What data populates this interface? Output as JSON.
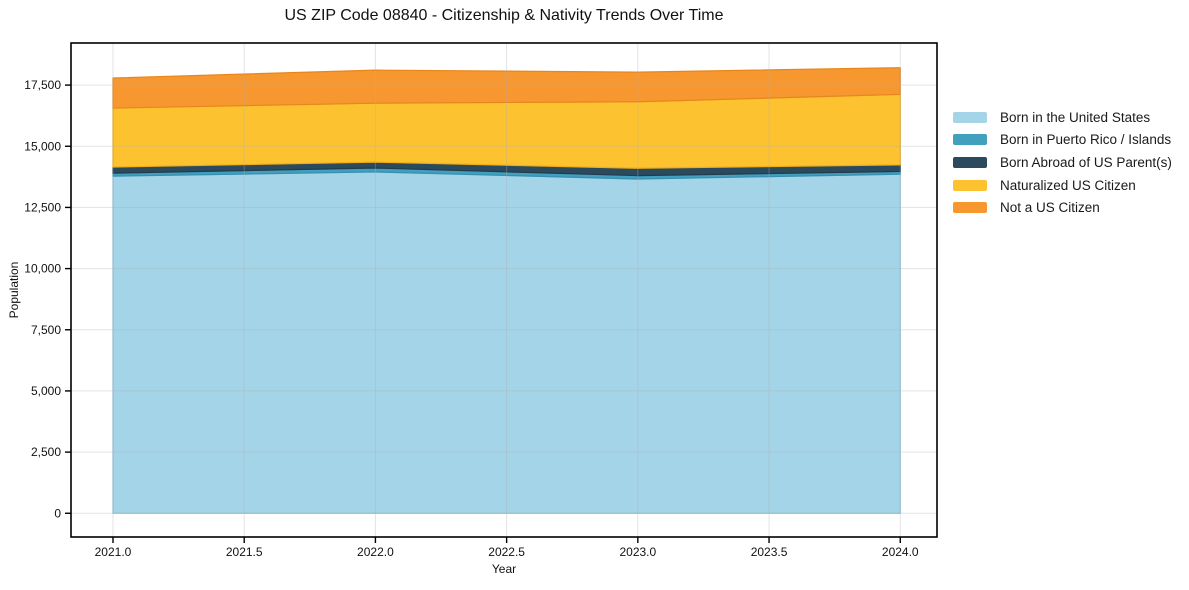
{
  "chart_data": {
    "type": "area",
    "stacked": true,
    "title": "US ZIP Code 08840 - Citizenship & Nativity Trends Over Time",
    "xlabel": "Year",
    "ylabel": "Population",
    "x": [
      2021,
      2022,
      2023,
      2024
    ],
    "series": [
      {
        "name": "Born in the United States",
        "color": "#A4D4E8",
        "edge": "#8CC3DC",
        "values": [
          13780,
          13950,
          13660,
          13860
        ]
      },
      {
        "name": "Born in Puerto Rico / Islands",
        "color": "#41A0BE",
        "edge": "#3690B0",
        "values": [
          120,
          160,
          140,
          110
        ]
      },
      {
        "name": "Born Abroad of US Parent(s)",
        "color": "#2B4A5E",
        "edge": "#223C4D",
        "values": [
          250,
          240,
          300,
          270
        ]
      },
      {
        "name": "Naturalized US Citizen",
        "color": "#FDC230",
        "edge": "#EFAE14",
        "values": [
          2410,
          2410,
          2720,
          2880
        ]
      },
      {
        "name": "Not a US Citizen",
        "color": "#F79730",
        "edge": "#E8861C",
        "values": [
          1230,
          1350,
          1210,
          1090
        ]
      }
    ],
    "totals": [
      17790,
      18110,
      18030,
      18210
    ],
    "xlim": [
      2020.84,
      2024.14
    ],
    "ylim": [
      -970,
      19220
    ],
    "x_ticks": [
      2021.0,
      2021.5,
      2022.0,
      2022.5,
      2023.0,
      2023.5,
      2024.0
    ],
    "x_tick_labels": [
      "2021.0",
      "2021.5",
      "2022.0",
      "2022.5",
      "2023.0",
      "2023.5",
      "2024.0"
    ],
    "y_ticks": [
      0,
      2500,
      5000,
      7500,
      10000,
      12500,
      15000,
      17500
    ],
    "y_tick_labels": [
      "0",
      "2,500",
      "5,000",
      "7,500",
      "10,000",
      "12,500",
      "15,000",
      "17,500"
    ],
    "grid": true,
    "legend_position": "right-outside"
  },
  "colors": {
    "background": "#ffffff",
    "spine": "#000000",
    "grid": "#b0b0b0",
    "tick_label": "#111111"
  }
}
